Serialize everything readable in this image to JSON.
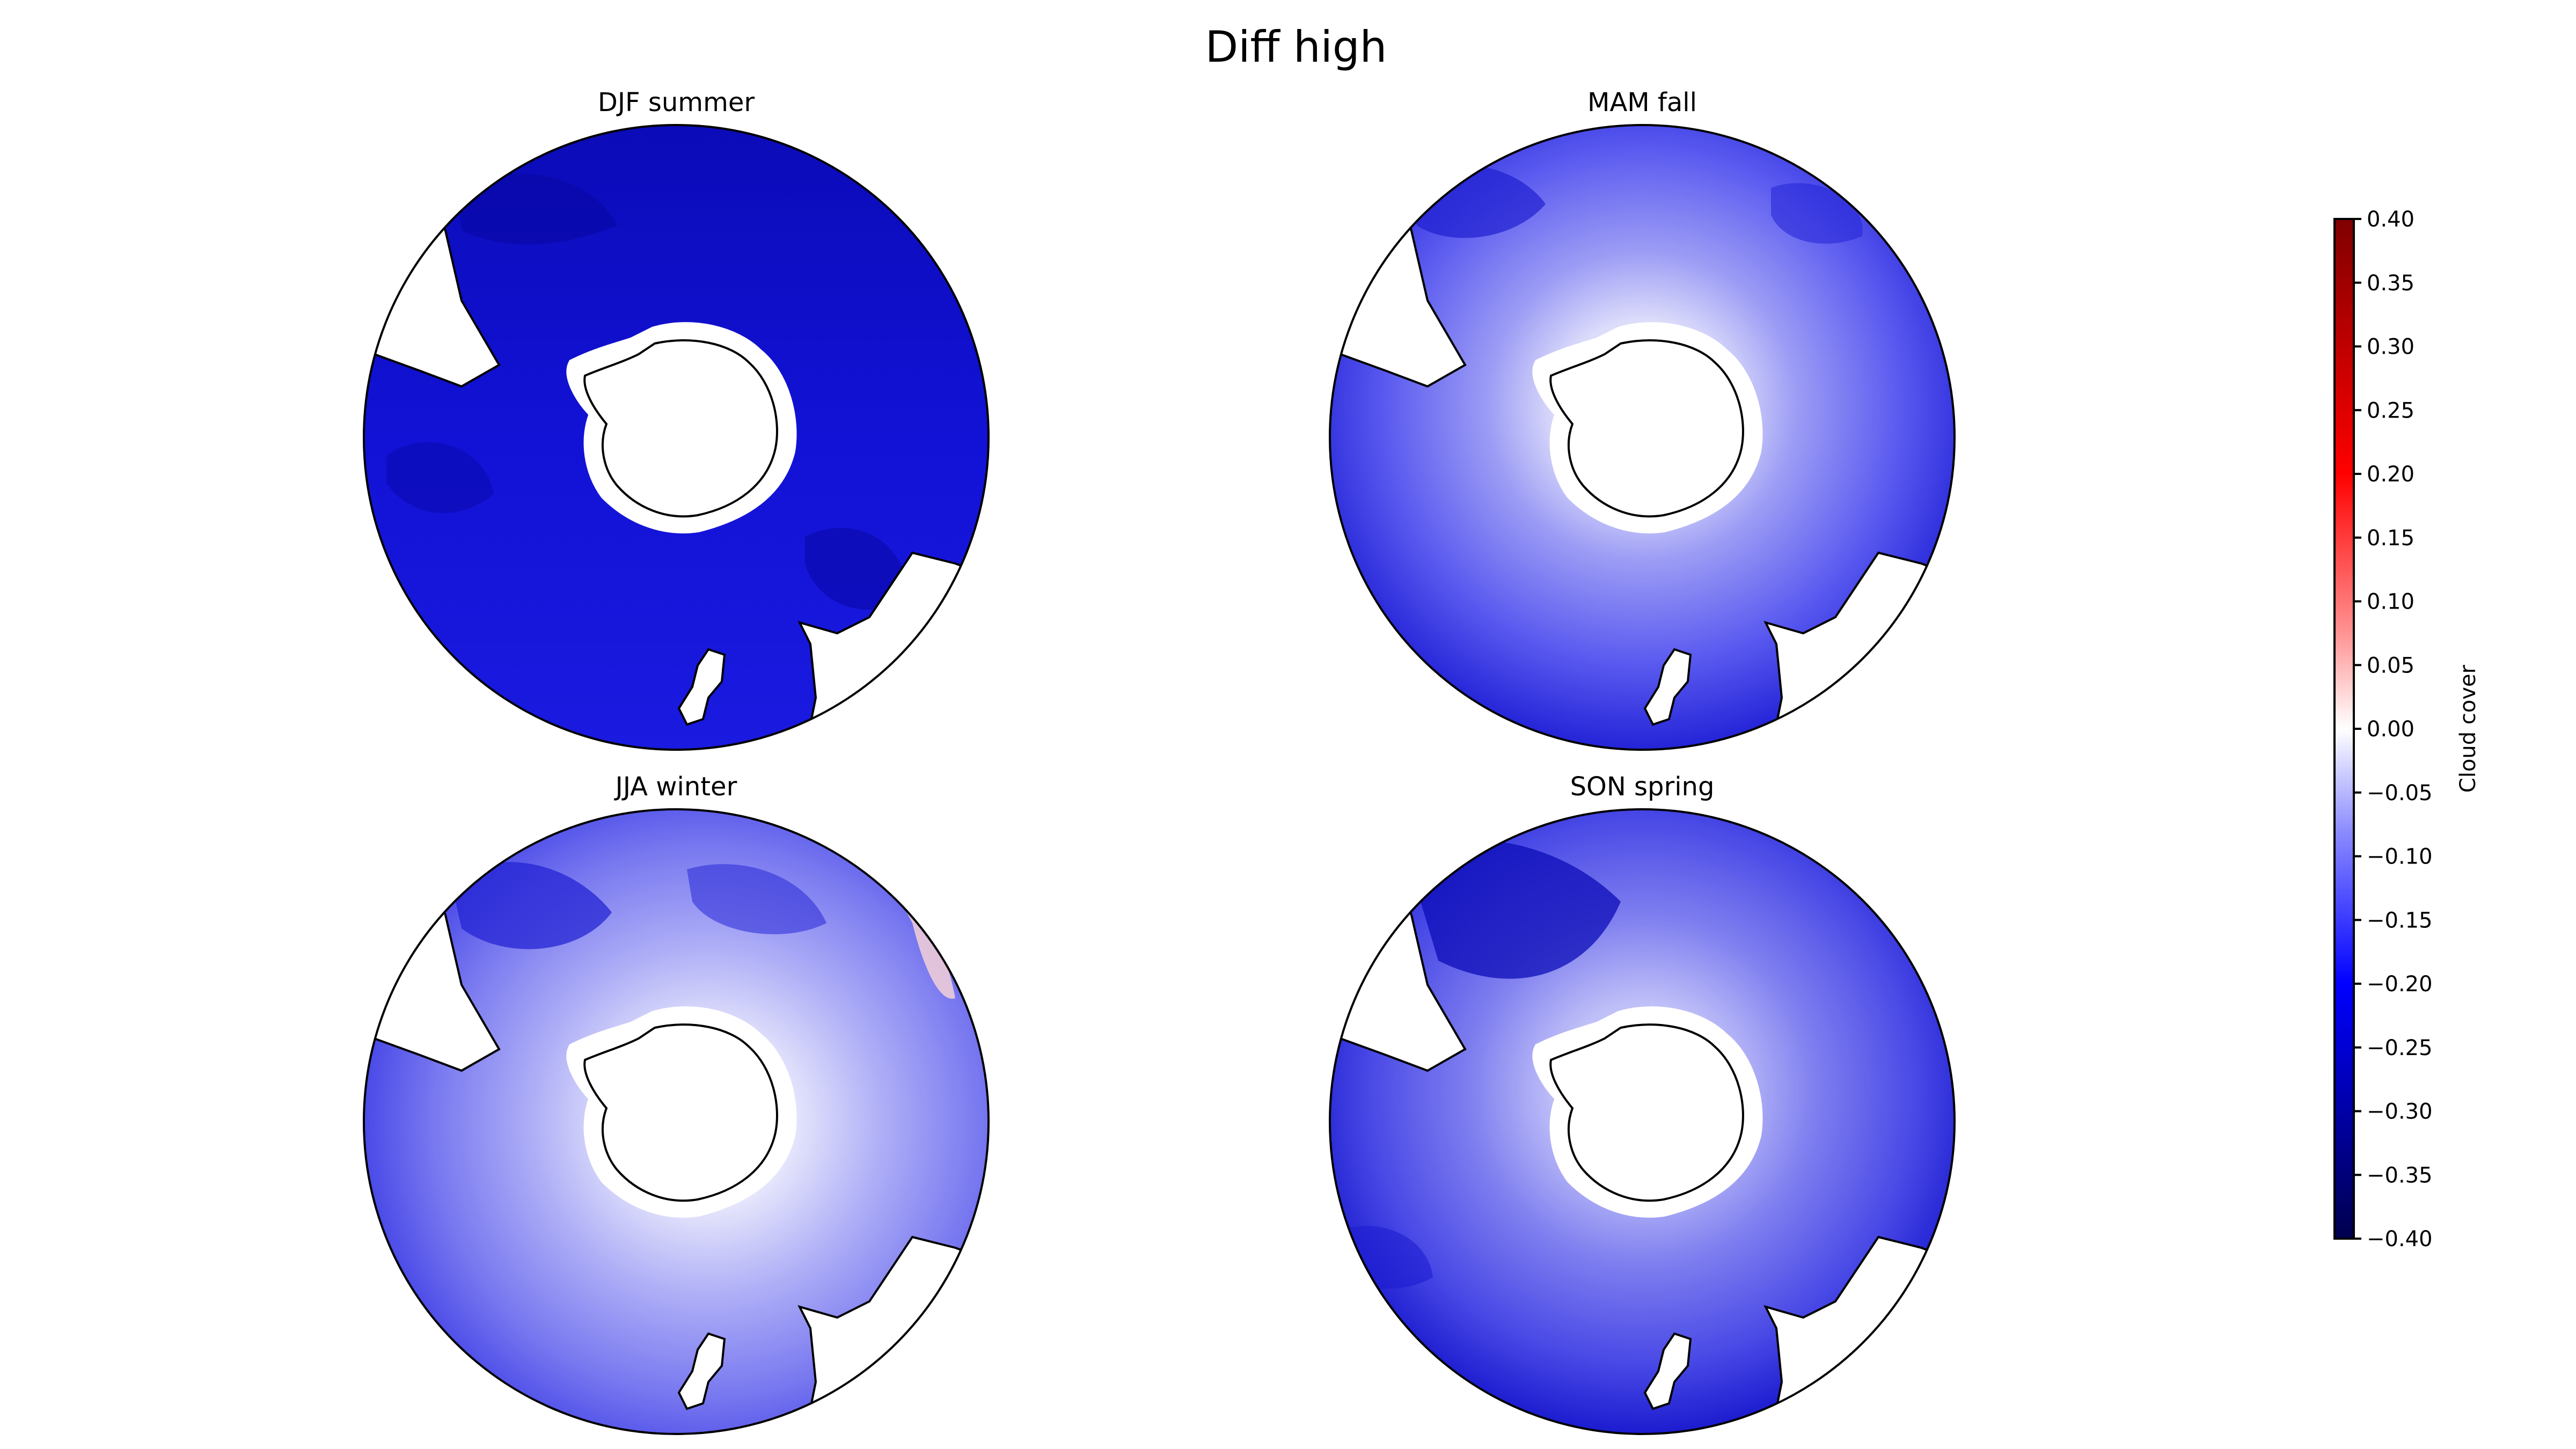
{
  "chart_data": {
    "type": "contour-map",
    "title": "Diff high",
    "projection": "south polar stereographic",
    "panels": [
      {
        "title": "DJF summer",
        "dominant_range": [
          -0.25,
          -0.15
        ],
        "min_band": [
          -0.3,
          -0.25
        ],
        "max_band": [
          -0.2,
          -0.15
        ]
      },
      {
        "title": "MAM fall",
        "dominant_range": [
          -0.15,
          -0.05
        ],
        "min_band": [
          -0.3,
          -0.25
        ],
        "max_band": [
          -0.05,
          0.0
        ]
      },
      {
        "title": "JJA winter",
        "dominant_range": [
          -0.15,
          -0.05
        ],
        "min_band": [
          -0.25,
          -0.2
        ],
        "max_band": [
          0.0,
          0.05
        ]
      },
      {
        "title": "SON spring",
        "dominant_range": [
          -0.2,
          -0.1
        ],
        "min_band": [
          -0.3,
          -0.25
        ],
        "max_band": [
          -0.1,
          -0.05
        ]
      }
    ],
    "colorbar": {
      "label": "Cloud cover",
      "min": -0.4,
      "max": 0.4,
      "step": 0.05,
      "ticks": [
        "0.40",
        "0.35",
        "0.30",
        "0.25",
        "0.20",
        "0.15",
        "0.10",
        "0.05",
        "0.00",
        "−0.05",
        "−0.10",
        "−0.15",
        "−0.20",
        "−0.25",
        "−0.30",
        "−0.35",
        "−0.40"
      ],
      "colormap": "seismic"
    }
  },
  "colors": {
    "ocean_strong_negative": "#1a1ad8",
    "ocean_negative": "#5a5af0",
    "ocean_weak_negative": "#a8a8f8",
    "land": "#ffffff",
    "coastline": "#000000"
  }
}
